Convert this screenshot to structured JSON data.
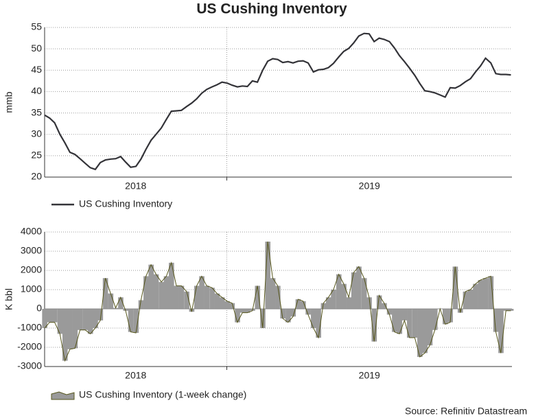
{
  "chart_data": [
    {
      "type": "line",
      "title": "US Cushing Inventory",
      "y_label": "mmb",
      "x": [
        2018.31,
        2018.329,
        2018.348,
        2018.368,
        2018.387,
        2018.406,
        2018.425,
        2018.444,
        2018.464,
        2018.483,
        2018.502,
        2018.521,
        2018.54,
        2018.56,
        2018.579,
        2018.598,
        2018.617,
        2018.636,
        2018.656,
        2018.675,
        2018.694,
        2018.713,
        2018.732,
        2018.752,
        2018.771,
        2018.79,
        2018.809,
        2018.828,
        2018.848,
        2018.867,
        2018.886,
        2018.905,
        2018.924,
        2018.944,
        2018.963,
        2018.982,
        2019.001,
        2019.02,
        2019.04,
        2019.059,
        2019.078,
        2019.097,
        2019.116,
        2019.136,
        2019.155,
        2019.174,
        2019.193,
        2019.212,
        2019.232,
        2019.251,
        2019.27,
        2019.289,
        2019.308,
        2019.328,
        2019.347,
        2019.366,
        2019.385,
        2019.404,
        2019.424,
        2019.443,
        2019.462,
        2019.481,
        2019.5,
        2019.52,
        2019.539,
        2019.558,
        2019.577,
        2019.596,
        2019.616,
        2019.635,
        2019.654,
        2019.673,
        2019.692,
        2019.712,
        2019.731,
        2019.75,
        2019.769,
        2019.788,
        2019.808,
        2019.827,
        2019.846,
        2019.865,
        2019.884,
        2019.904,
        2019.923,
        2019.942,
        2019.961,
        2019.98,
        2020.0,
        2020.019,
        2020.038,
        2020.057,
        2020.076
      ],
      "series": [
        {
          "name": "US Cushing Inventory",
          "color": "#333338",
          "values": [
            34.5,
            33.8,
            32.7,
            30,
            28,
            25.8,
            25.3,
            24.3,
            23.2,
            22.2,
            21.8,
            23.4,
            24,
            24.2,
            24.3,
            24.8,
            23.5,
            22.3,
            22.5,
            24.2,
            26.5,
            28.6,
            30,
            31.5,
            33.5,
            35.4,
            35.5,
            35.6,
            36.5,
            37.3,
            38.3,
            39.6,
            40.5,
            41.1,
            41.6,
            42.2,
            42,
            41.5,
            41.1,
            41.3,
            41.2,
            42.5,
            42.2,
            45,
            47.1,
            47.7,
            47.5,
            46.8,
            47,
            46.7,
            47.1,
            47.2,
            46.7,
            44.6,
            45.1,
            45.2,
            45.6,
            46.6,
            48.1,
            49.4,
            50.1,
            51.4,
            53,
            53.6,
            53.5,
            51.7,
            52.5,
            52.2,
            51.7,
            50.2,
            48.4,
            47,
            45.5,
            43.8,
            41.9,
            40.2,
            40,
            39.7,
            39.2,
            38.7,
            40.9,
            40.8,
            41.4,
            42.3,
            43,
            44.6,
            46,
            47.8,
            46.7,
            44.2,
            44,
            44,
            43.9
          ]
        }
      ],
      "xlim": [
        2018.31,
        2020.08
      ],
      "xticks": [
        2019
      ],
      "year_labels": [
        "2018",
        "2019"
      ],
      "ylim": [
        20,
        55
      ],
      "yticks": [
        20,
        25,
        30,
        35,
        40,
        45,
        50,
        55
      ],
      "grid": true
    },
    {
      "type": "area",
      "y_label": "K bbl",
      "source": "Source: Refinitiv Datastream",
      "series": [
        {
          "name": "US Cushing Inventory (1-week change)",
          "color": "#9a9a9a",
          "edge_color": "#55551a",
          "values": [
            -1000,
            -700,
            -700,
            -1300,
            -2700,
            -2100,
            -2050,
            -1100,
            -1100,
            -1300,
            -1000,
            -600,
            1600,
            800,
            50,
            600,
            -100,
            -1200,
            -1250,
            450,
            1700,
            2300,
            1800,
            1400,
            1700,
            2400,
            1200,
            1200,
            900,
            -150,
            1200,
            1700,
            1200,
            1100,
            800,
            600,
            400,
            300,
            -700,
            -200,
            -200,
            -100,
            1200,
            -1000,
            3500,
            1600,
            1200,
            -500,
            -700,
            -400,
            500,
            400,
            -300,
            -1000,
            -1500,
            300,
            600,
            1000,
            1800,
            1300,
            600,
            1900,
            2200,
            1600,
            600,
            -1700,
            700,
            300,
            -300,
            -1200,
            -1300,
            -600,
            -1500,
            -1500,
            -2500,
            -2300,
            -1900,
            -1100,
            0,
            -800,
            -700,
            2200,
            -200,
            900,
            1000,
            1300,
            1500,
            1600,
            1700,
            -1200,
            -2300,
            -100,
            -100
          ]
        }
      ],
      "xlim": [
        2018.31,
        2020.08
      ],
      "xticks": [
        2019
      ],
      "year_labels": [
        "2018",
        "2019"
      ],
      "ylim": [
        -3000,
        4000
      ],
      "yticks": [
        -3000,
        -2000,
        -1000,
        0,
        1000,
        2000,
        3000,
        4000
      ],
      "grid": true
    }
  ]
}
